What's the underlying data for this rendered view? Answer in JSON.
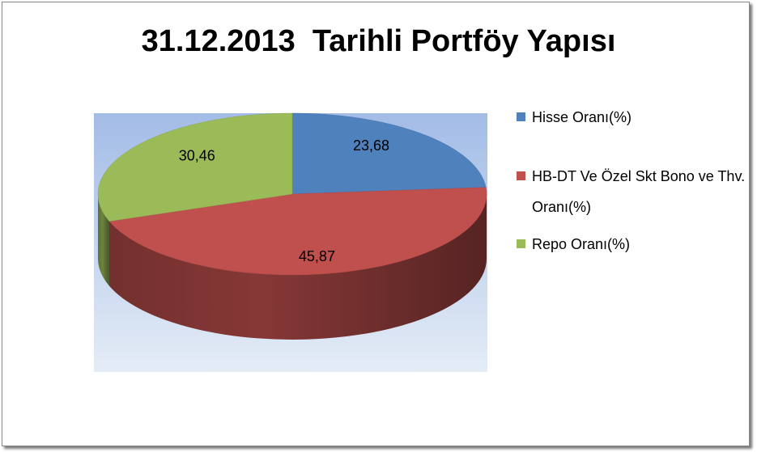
{
  "chart_data": {
    "type": "pie",
    "title": "31.12.2013  Tarihli Portföy Yapısı",
    "categories": [
      "Hisse Oranı(%)",
      "HB-DT Ve Özel Skt Bono ve Thv. Oranı(%)",
      "Repo Oranı(%)"
    ],
    "values": [
      23.68,
      45.87,
      30.46
    ],
    "value_labels": [
      "23,68",
      "45,87",
      "30,46"
    ],
    "colors": [
      "#4f81bd",
      "#c0504d",
      "#9bbb59"
    ],
    "legend": "right"
  }
}
